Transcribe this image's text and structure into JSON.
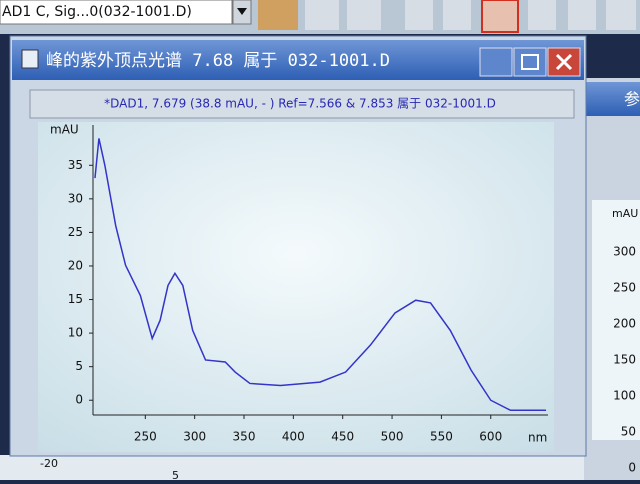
{
  "toolbar": {
    "signal": "AD1 C, Sig...0(032-1001.D)"
  },
  "window": {
    "title": "峰的紫外顶点光谱 7.68 属于 032-1001.D"
  },
  "chart_data": {
    "type": "line",
    "legend_text": "*DAD1, 7.679 (38.8 mAU, - ) Ref=7.566 & 7.853 属于 032-1001.D",
    "y_label": "mAU",
    "x_label": "nm",
    "x": [
      199,
      203,
      209,
      220,
      230,
      245,
      257,
      265,
      273,
      280,
      288,
      298,
      311,
      331,
      341,
      356,
      387,
      427,
      453,
      478,
      503,
      524,
      539,
      559,
      580,
      600,
      620,
      656
    ],
    "series": [
      {
        "name": "DAD1",
        "color": "#3434c8",
        "values": [
          33.1,
          39.0,
          35,
          26,
          20.1,
          15.6,
          9.2,
          11.9,
          17.1,
          18.9,
          17.1,
          10.4,
          6.0,
          5.7,
          4.2,
          2.5,
          2.2,
          2.7,
          4.2,
          8.2,
          13.0,
          14.9,
          14.5,
          10.4,
          4.5,
          0,
          -1.5,
          -1.5
        ]
      }
    ],
    "xlim": [
      197,
      658
    ],
    "ylim": [
      -2.2,
      41
    ],
    "xticks": [
      250,
      300,
      350,
      400,
      450,
      500,
      550,
      600
    ],
    "yticks": [
      0,
      5,
      10,
      15,
      20,
      25,
      30,
      35
    ]
  },
  "side_panel": {
    "title": "参",
    "y_label": "mAU",
    "yticks": [
      300,
      250,
      200,
      150,
      100,
      50,
      0
    ]
  },
  "background_axis_labels": [
    "-20",
    "5"
  ]
}
